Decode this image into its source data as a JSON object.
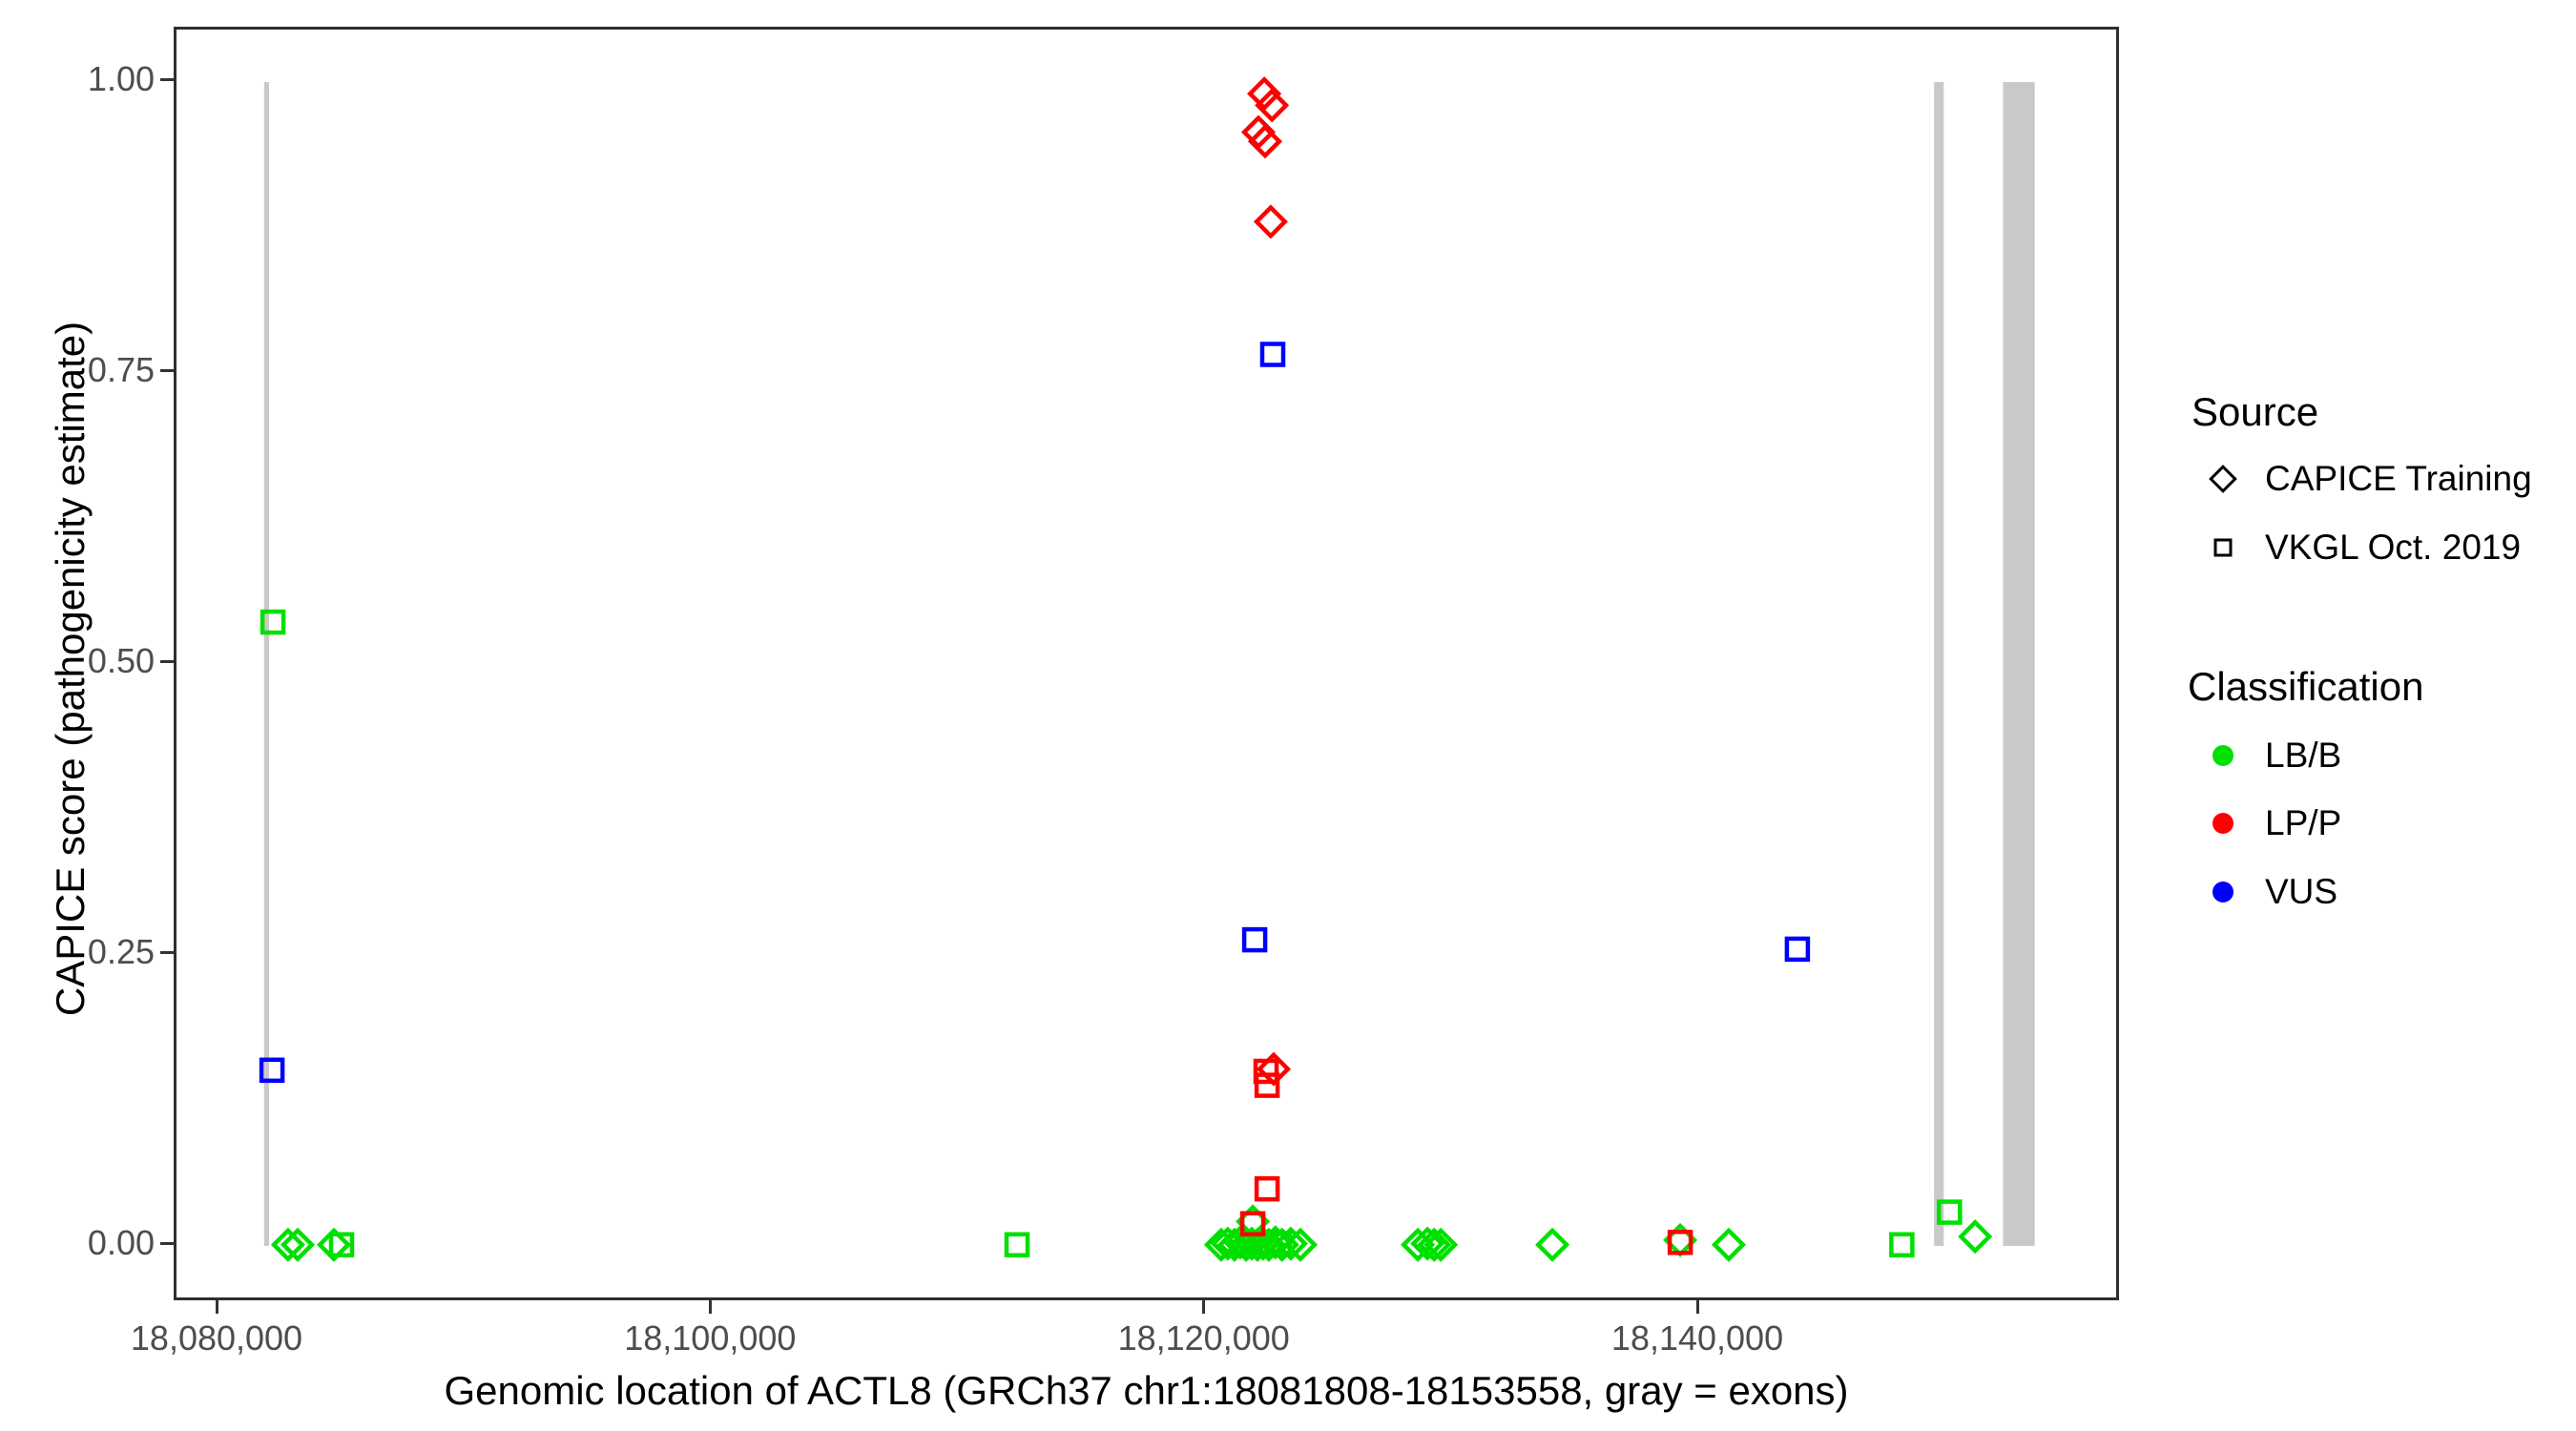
{
  "figure": {
    "background": "#ffffff",
    "colors": {
      "lbb_green": "#00e000",
      "lpp_red": "#ff0000",
      "vus_blue": "#0000ff",
      "exon_gray": "#c9c9c9",
      "tick_text": "#4d4d4d",
      "panel_border": "#2e2e2e"
    },
    "legend": {
      "source": {
        "title": "Source",
        "items": [
          {
            "label": "CAPICE Training",
            "shape": "diamond"
          },
          {
            "label": "VKGL Oct. 2019",
            "shape": "square"
          }
        ]
      },
      "classification": {
        "title": "Classification",
        "items": [
          {
            "label": "LB/B",
            "color": "#00e000"
          },
          {
            "label": "LP/P",
            "color": "#ff0000"
          },
          {
            "label": "VUS",
            "color": "#0000ff"
          }
        ]
      }
    }
  },
  "chart_data": {
    "type": "scatter",
    "title": "",
    "xlabel": "Genomic location of ACTL8 (GRCh37 chr1:18081808-18153558, gray = exons)",
    "ylabel": "CAPICE score (pathogenicity estimate)",
    "xlim": [
      18078250,
      18158900
    ],
    "ylim": [
      0.0,
      1.0
    ],
    "grid": false,
    "legend_position": "right",
    "x_ticks": [
      {
        "label": "18,080,000",
        "bp": 18080000
      },
      {
        "label": "18,100,000",
        "bp": 18100000
      },
      {
        "label": "18,120,000",
        "bp": 18120000
      },
      {
        "label": "18,140,000",
        "bp": 18140000
      }
    ],
    "y_ticks": [
      {
        "label": "1.00",
        "value": 1.0
      },
      {
        "label": "0.75",
        "value": 0.75
      },
      {
        "label": "0.50",
        "value": 0.5
      },
      {
        "label": "0.25",
        "value": 0.25
      },
      {
        "label": "0.00",
        "value": 0.0
      }
    ],
    "exons_bp": [
      {
        "start": 18081808,
        "end": 18082010
      },
      {
        "start": 18149480,
        "end": 18149870
      },
      {
        "start": 18152270,
        "end": 18153558
      }
    ],
    "series_note": "marker shape = Source (diamond = CAPICE Training, square = VKGL Oct. 2019); color = Classification (LB/B green, LP/P red, VUS blue)",
    "points": [
      {
        "bp": 18082780,
        "score": 0.001,
        "source": "CAPICE Training",
        "classification": "LB/B"
      },
      {
        "bp": 18083170,
        "score": 0.001,
        "source": "CAPICE Training",
        "classification": "LB/B"
      },
      {
        "bp": 18084640,
        "score": 0.001,
        "source": "CAPICE Training",
        "classification": "LB/B"
      },
      {
        "bp": 18120590,
        "score": 0.001,
        "source": "CAPICE Training",
        "classification": "LB/B"
      },
      {
        "bp": 18120860,
        "score": 0.002,
        "source": "CAPICE Training",
        "classification": "LB/B"
      },
      {
        "bp": 18121130,
        "score": 0.001,
        "source": "CAPICE Training",
        "classification": "LB/B"
      },
      {
        "bp": 18121360,
        "score": 0.003,
        "source": "CAPICE Training",
        "classification": "LB/B"
      },
      {
        "bp": 18121600,
        "score": 0.001,
        "source": "CAPICE Training",
        "classification": "LB/B"
      },
      {
        "bp": 18121830,
        "score": 0.002,
        "source": "CAPICE Training",
        "classification": "LB/B"
      },
      {
        "bp": 18122060,
        "score": 0.001,
        "source": "CAPICE Training",
        "classification": "LB/B"
      },
      {
        "bp": 18122290,
        "score": 0.002,
        "source": "CAPICE Training",
        "classification": "LB/B"
      },
      {
        "bp": 18122520,
        "score": 0.001,
        "source": "CAPICE Training",
        "classification": "LB/B"
      },
      {
        "bp": 18122790,
        "score": 0.003,
        "source": "CAPICE Training",
        "classification": "LB/B"
      },
      {
        "bp": 18123060,
        "score": 0.001,
        "source": "CAPICE Training",
        "classification": "LB/B"
      },
      {
        "bp": 18123410,
        "score": 0.002,
        "source": "CAPICE Training",
        "classification": "LB/B"
      },
      {
        "bp": 18123800,
        "score": 0.001,
        "source": "CAPICE Training",
        "classification": "LB/B"
      },
      {
        "bp": 18121870,
        "score": 0.021,
        "source": "CAPICE Training",
        "classification": "LB/B"
      },
      {
        "bp": 18128560,
        "score": 0.001,
        "source": "CAPICE Training",
        "classification": "LB/B"
      },
      {
        "bp": 18128950,
        "score": 0.002,
        "source": "CAPICE Training",
        "classification": "LB/B"
      },
      {
        "bp": 18129220,
        "score": 0.001,
        "source": "CAPICE Training",
        "classification": "LB/B"
      },
      {
        "bp": 18129490,
        "score": 0.001,
        "source": "CAPICE Training",
        "classification": "LB/B"
      },
      {
        "bp": 18134010,
        "score": 0.001,
        "source": "CAPICE Training",
        "classification": "LB/B"
      },
      {
        "bp": 18139190,
        "score": 0.005,
        "source": "CAPICE Training",
        "classification": "LB/B"
      },
      {
        "bp": 18141160,
        "score": 0.001,
        "source": "CAPICE Training",
        "classification": "LB/B"
      },
      {
        "bp": 18151140,
        "score": 0.008,
        "source": "CAPICE Training",
        "classification": "LB/B"
      },
      {
        "bp": 18082170,
        "score": 0.536,
        "source": "VKGL Oct. 2019",
        "classification": "LB/B"
      },
      {
        "bp": 18084950,
        "score": 0.001,
        "source": "VKGL Oct. 2019",
        "classification": "LB/B"
      },
      {
        "bp": 18112320,
        "score": 0.001,
        "source": "VKGL Oct. 2019",
        "classification": "LB/B"
      },
      {
        "bp": 18121400,
        "score": 0.001,
        "source": "VKGL Oct. 2019",
        "classification": "LB/B"
      },
      {
        "bp": 18122950,
        "score": 0.002,
        "source": "VKGL Oct. 2019",
        "classification": "LB/B"
      },
      {
        "bp": 18148170,
        "score": 0.001,
        "source": "VKGL Oct. 2019",
        "classification": "LB/B"
      },
      {
        "bp": 18150100,
        "score": 0.029,
        "source": "VKGL Oct. 2019",
        "classification": "LB/B"
      },
      {
        "bp": 18122335,
        "score": 0.99,
        "source": "CAPICE Training",
        "classification": "LP/P"
      },
      {
        "bp": 18122650,
        "score": 0.98,
        "source": "CAPICE Training",
        "classification": "LP/P"
      },
      {
        "bp": 18122100,
        "score": 0.957,
        "source": "CAPICE Training",
        "classification": "LP/P"
      },
      {
        "bp": 18122370,
        "score": 0.949,
        "source": "CAPICE Training",
        "classification": "LP/P"
      },
      {
        "bp": 18122600,
        "score": 0.88,
        "source": "CAPICE Training",
        "classification": "LP/P"
      },
      {
        "bp": 18122720,
        "score": 0.152,
        "source": "CAPICE Training",
        "classification": "LP/P"
      },
      {
        "bp": 18122410,
        "score": 0.15,
        "source": "VKGL Oct. 2019",
        "classification": "LP/P"
      },
      {
        "bp": 18122450,
        "score": 0.138,
        "source": "VKGL Oct. 2019",
        "classification": "LP/P"
      },
      {
        "bp": 18122450,
        "score": 0.049,
        "source": "VKGL Oct. 2019",
        "classification": "LP/P"
      },
      {
        "bp": 18121870,
        "score": 0.019,
        "source": "VKGL Oct. 2019",
        "classification": "LP/P"
      },
      {
        "bp": 18139190,
        "score": 0.003,
        "source": "VKGL Oct. 2019",
        "classification": "LP/P"
      },
      {
        "bp": 18082130,
        "score": 0.151,
        "source": "VKGL Oct. 2019",
        "classification": "VUS"
      },
      {
        "bp": 18121950,
        "score": 0.263,
        "source": "VKGL Oct. 2019",
        "classification": "VUS"
      },
      {
        "bp": 18122680,
        "score": 0.766,
        "source": "VKGL Oct. 2019",
        "classification": "VUS"
      },
      {
        "bp": 18143940,
        "score": 0.255,
        "source": "VKGL Oct. 2019",
        "classification": "VUS"
      }
    ]
  }
}
